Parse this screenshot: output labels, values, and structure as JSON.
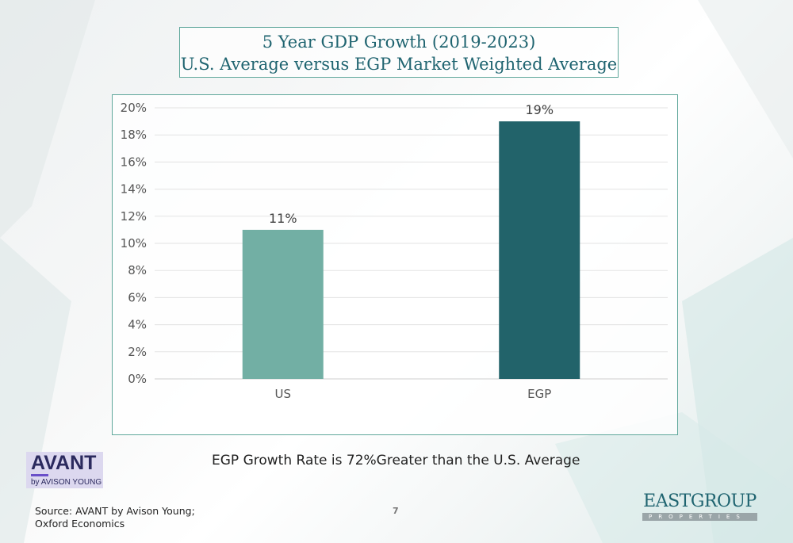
{
  "title": {
    "line1": "5 Year GDP Growth (2019-2023)",
    "line2": "U.S. Average versus EGP Market Weighted Average"
  },
  "colors": {
    "us_bar": "#72afa4",
    "egp_bar": "#22636a",
    "accent": "#5fa79b",
    "title_text": "#1f6470"
  },
  "chart_data": {
    "type": "bar",
    "title": "5 Year GDP Growth (2019-2023) U.S. Average versus EGP Market Weighted Average",
    "categories": [
      "US",
      "EGP"
    ],
    "values": [
      11,
      19
    ],
    "value_labels": [
      "11%",
      "19%"
    ],
    "ylim": [
      0,
      20
    ],
    "yticks": [
      0,
      2,
      4,
      6,
      8,
      10,
      12,
      14,
      16,
      18,
      20
    ],
    "ytick_labels": [
      "0%",
      "2%",
      "4%",
      "6%",
      "8%",
      "10%",
      "12%",
      "14%",
      "16%",
      "18%",
      "20%"
    ],
    "xlabel": "",
    "ylabel": "",
    "grid": true
  },
  "callout": "EGP Growth Rate is 72%Greater than the U.S. Average",
  "avant_logo": {
    "main": "AVANT",
    "sub": "by AVISON YOUNG"
  },
  "source": {
    "line1": "Source: AVANT by Avison Young;",
    "line2": "Oxford Economics"
  },
  "page_number": "7",
  "eastgroup_logo": {
    "main": "EASTGROUP",
    "sub": "PROPERTIES"
  }
}
